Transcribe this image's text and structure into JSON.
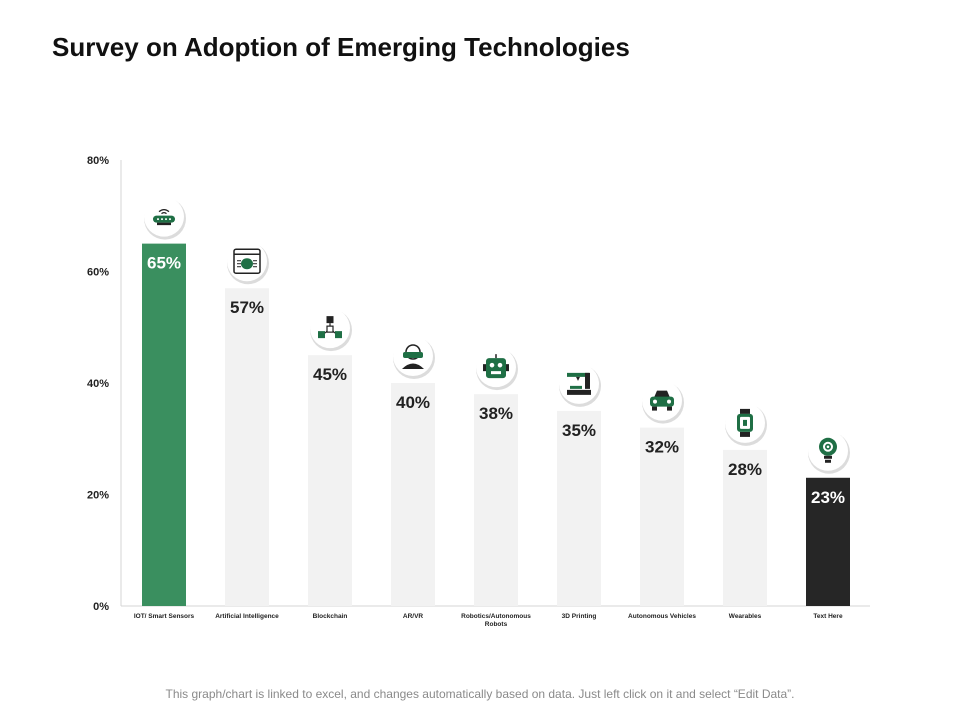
{
  "page": {
    "title": "Survey on Adoption of Emerging Technologies",
    "footer": "This graph/chart is linked to excel, and changes automatically based on data. Just left click on it and select “Edit Data”."
  },
  "chart_data": {
    "type": "bar",
    "title": "Survey on Adoption of Emerging Technologies",
    "xlabel": "",
    "ylabel": "",
    "ylim": [
      0,
      80
    ],
    "yticks": [
      0,
      20,
      40,
      60,
      80
    ],
    "ytick_labels": [
      "0%",
      "20%",
      "40%",
      "60%",
      "80%"
    ],
    "categories": [
      [
        "IOT/ Smart Sensors"
      ],
      [
        "Artificial Intelligence"
      ],
      [
        "Blockchain"
      ],
      [
        "AR/VR"
      ],
      [
        "Robotics/Autonomous",
        "Robots"
      ],
      [
        "3D Printing"
      ],
      [
        "Autonomous Vehicles"
      ],
      [
        "Wearables"
      ],
      [
        "Text Here"
      ]
    ],
    "values": [
      65,
      57,
      45,
      40,
      38,
      35,
      32,
      28,
      23
    ],
    "value_labels": [
      "65%",
      "57%",
      "45%",
      "40%",
      "38%",
      "35%",
      "32%",
      "28%",
      "23%"
    ],
    "bar_colors": [
      "#3a8f5f",
      "#f2f2f2",
      "#f2f2f2",
      "#f2f2f2",
      "#f2f2f2",
      "#f2f2f2",
      "#f2f2f2",
      "#f2f2f2",
      "#262626"
    ],
    "label_colors": [
      "#ffffff",
      "#222222",
      "#222222",
      "#222222",
      "#222222",
      "#222222",
      "#222222",
      "#222222",
      "#ffffff"
    ],
    "icons": [
      "wifi-router-icon",
      "ai-chip-icon",
      "blockchain-icon",
      "vr-headset-icon",
      "robot-icon",
      "3d-printer-icon",
      "car-icon",
      "smartwatch-icon",
      "lightbulb-gear-icon"
    ],
    "grid": false,
    "legend": "none"
  },
  "colors": {
    "accent": "#3a8f5f",
    "dark": "#262626",
    "icon": "#1f6f45"
  }
}
